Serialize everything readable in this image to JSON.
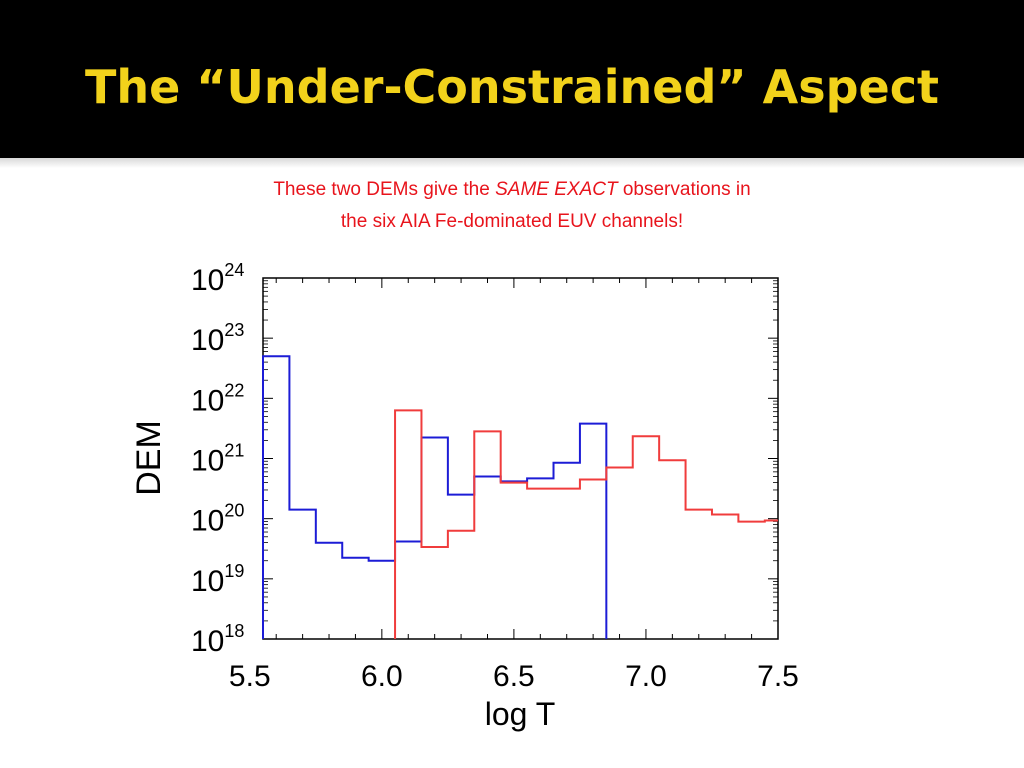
{
  "slide": {
    "title": "The “Under-Constrained” Aspect",
    "caption_before": "These two DEMs give the ",
    "caption_emphasis": "SAME EXACT",
    "caption_after": " observations in the six AIA Fe-dominated EUV channels!"
  },
  "colors": {
    "title_bar": "#000000",
    "title_text": "#f2d21b",
    "caption_text": "#e8141c",
    "series_blue": "#1c1cd6",
    "series_red": "#f03c3c"
  },
  "chart_data": {
    "type": "line",
    "step": true,
    "title": "",
    "xlabel": "log T",
    "ylabel": "DEM",
    "xlim": [
      5.55,
      7.5
    ],
    "ylim_log10": [
      18,
      24
    ],
    "y_scale": "log",
    "x_ticks": [
      "5.5",
      "6.0",
      "6.5",
      "7.0",
      "7.5"
    ],
    "x_tick_values": [
      5.5,
      6.0,
      6.5,
      7.0,
      7.5
    ],
    "y_tick_exponents": [
      "18",
      "19",
      "20",
      "21",
      "22",
      "23",
      "24"
    ],
    "y_tick_base": "10",
    "grid": false,
    "legend": "none",
    "series": [
      {
        "color": "blue",
        "bin_edges": [
          5.55,
          5.65,
          5.75,
          5.85,
          5.95,
          6.05,
          6.15,
          6.25,
          6.35,
          6.45,
          6.55,
          6.65,
          6.75,
          6.85
        ],
        "log10_values": [
          22.7,
          20.15,
          19.6,
          19.35,
          19.3,
          19.62,
          21.35,
          20.4,
          20.7,
          20.62,
          20.67,
          20.93,
          21.58
        ],
        "floor_log10": 18
      },
      {
        "color": "red",
        "bin_edges": [
          6.05,
          6.15,
          6.25,
          6.35,
          6.45,
          6.55,
          6.65,
          6.75,
          6.85,
          6.95,
          7.05,
          7.15,
          7.25,
          7.35,
          7.45,
          7.5
        ],
        "log10_values": [
          21.8,
          19.53,
          19.8,
          21.45,
          20.6,
          20.5,
          20.5,
          20.65,
          20.85,
          21.37,
          20.97,
          20.15,
          20.07,
          19.95,
          19.97
        ],
        "floor_log10": 18
      }
    ]
  }
}
